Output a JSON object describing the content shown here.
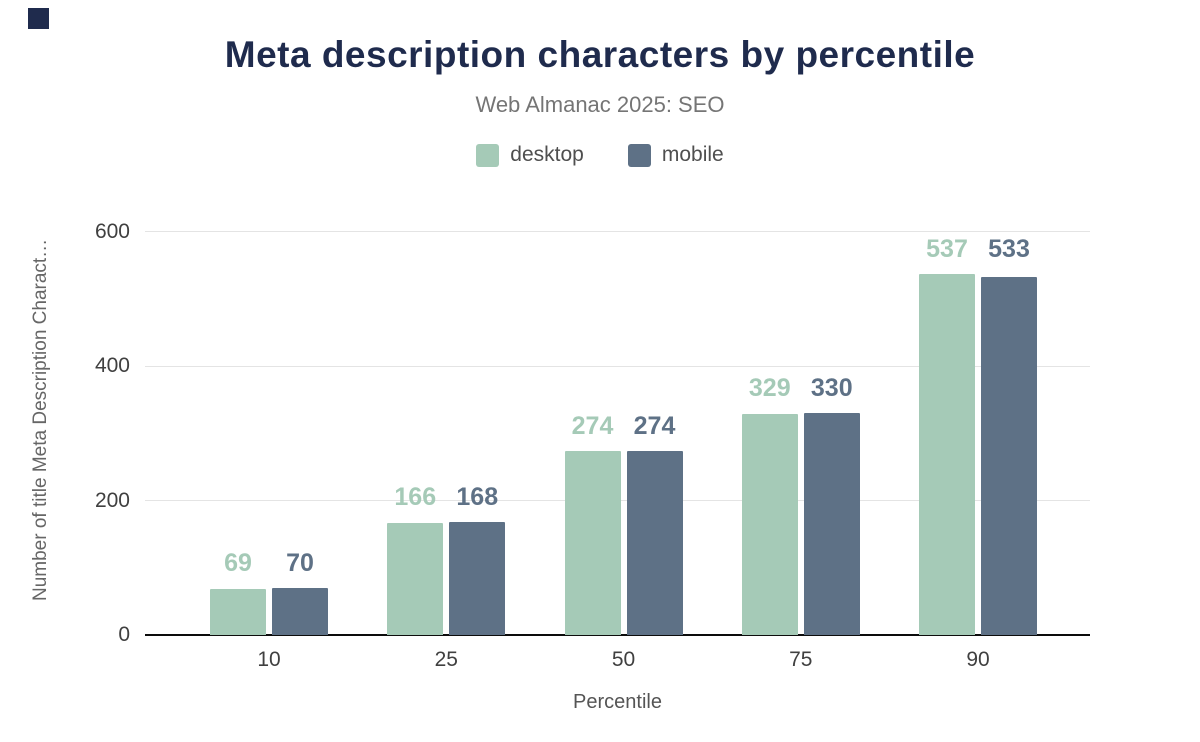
{
  "title": "Meta description characters by percentile",
  "subtitle": "Web Almanac 2025: SEO",
  "chart_data": {
    "type": "bar",
    "title": "Meta description characters by percentile",
    "subtitle": "Web Almanac 2025: SEO",
    "categories": [
      "10",
      "25",
      "50",
      "75",
      "90"
    ],
    "series": [
      {
        "name": "desktop",
        "color": "#a5cab7",
        "values": [
          69,
          166,
          274,
          329,
          537
        ]
      },
      {
        "name": "mobile",
        "color": "#5e7186",
        "values": [
          70,
          168,
          274,
          330,
          533
        ]
      }
    ],
    "xlabel": "Percentile",
    "ylabel": "Number of title Meta Description Charact…",
    "yticks": [
      0,
      200,
      400,
      600
    ],
    "ylim": [
      0,
      600
    ],
    "grid": true,
    "legend_position": "top",
    "value_labels": true
  },
  "colors": {
    "title_navy": "#1f2b4d",
    "desktop": "#a5cab7",
    "mobile": "#5e7186",
    "gridline": "#e4e4e4",
    "axis_line": "#0c0c0c"
  }
}
